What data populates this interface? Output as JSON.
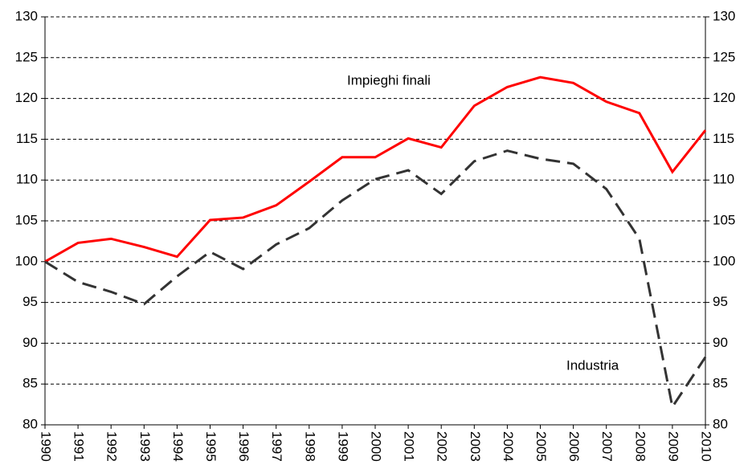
{
  "chart_data": {
    "type": "line",
    "categories": [
      "1990",
      "1991",
      "1992",
      "1993",
      "1994",
      "1995",
      "1996",
      "1997",
      "1998",
      "1999",
      "2000",
      "2001",
      "2002",
      "2003",
      "2004",
      "2005",
      "2006",
      "2007",
      "2008",
      "2009",
      "2010"
    ],
    "series": [
      {
        "name": "Impieghi finali",
        "color": "#ff0000",
        "dash": "none",
        "values": [
          100,
          102.3,
          102.8,
          101.8,
          100.6,
          105.1,
          105.4,
          106.9,
          109.8,
          112.8,
          112.8,
          115.1,
          114.0,
          119.1,
          121.4,
          122.6,
          121.9,
          119.6,
          118.2,
          111.0,
          116.1
        ]
      },
      {
        "name": "Industria",
        "color": "#333333",
        "dash": "18 9",
        "values": [
          100,
          97.5,
          96.3,
          94.8,
          98.2,
          101.2,
          99.1,
          102.1,
          104.1,
          107.5,
          110.1,
          111.2,
          108.3,
          112.3,
          113.6,
          112.6,
          112.0,
          108.9,
          102.8,
          82.2,
          88.3
        ]
      }
    ],
    "ylim": [
      80,
      130
    ],
    "yticks": [
      80,
      85,
      90,
      95,
      100,
      105,
      110,
      115,
      120,
      125,
      130
    ],
    "grid": true
  }
}
